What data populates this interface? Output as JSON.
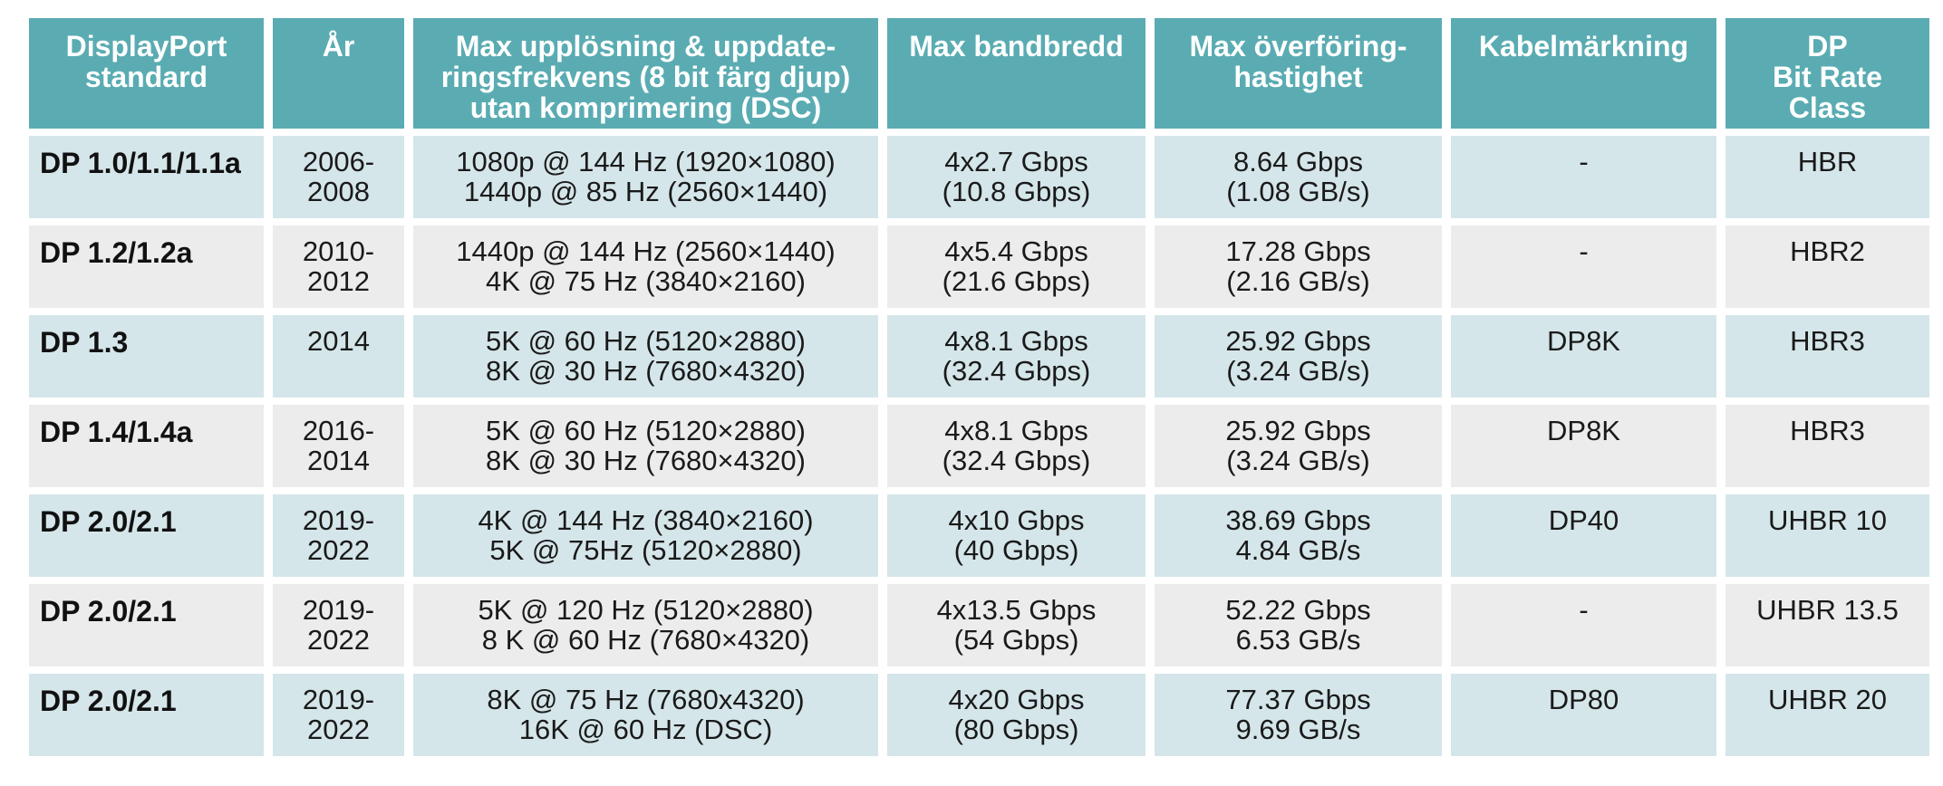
{
  "colors": {
    "header_bg": "#5aacb2",
    "row_blue": "#d5e6ea",
    "row_gray": "#ececec",
    "dash_accent": "#c0392b"
  },
  "headers": [
    [
      "DisplayPort",
      "standard"
    ],
    [
      "År"
    ],
    [
      "Max upplösning & uppdate-",
      "ringsfrekvens (8 bit färg djup)",
      "utan komprimering (DSC)"
    ],
    [
      "Max bandbredd"
    ],
    [
      "Max överföring-",
      "hastighet"
    ],
    [
      "Kabelmärkning"
    ],
    [
      "DP",
      "Bit Rate",
      "Class"
    ]
  ],
  "rows": [
    {
      "standard": "DP 1.0/1.1/1.1a",
      "year": [
        "2006-",
        "2008"
      ],
      "resolution": [
        "1080p @ 144 Hz (1920×1080)",
        "1440p @ 85 Hz (2560×1440)"
      ],
      "bandwidth": [
        "4x2.7 Gbps",
        "(10.8 Gbps)"
      ],
      "transfer": [
        "8.64 Gbps",
        "(1.08 GB/s)"
      ],
      "cable": "-",
      "bitrate": "HBR"
    },
    {
      "standard": "DP 1.2/1.2a",
      "year": [
        "2010-",
        "2012"
      ],
      "resolution": [
        "1440p @ 144 Hz (2560×1440)",
        "4K @ 75 Hz (3840×2160)"
      ],
      "bandwidth": [
        "4x5.4 Gbps",
        "(21.6 Gbps)"
      ],
      "transfer": [
        "17.28 Gbps",
        "(2.16 GB/s)"
      ],
      "cable": "-",
      "bitrate": "HBR2"
    },
    {
      "standard": "DP 1.3",
      "year": [
        "2014",
        ""
      ],
      "resolution": [
        "5K @ 60 Hz (5120×2880)",
        "8K @ 30 Hz (7680×4320)"
      ],
      "bandwidth": [
        "4x8.1 Gbps",
        "(32.4 Gbps)"
      ],
      "transfer": [
        "25.92 Gbps",
        "(3.24 GB/s)"
      ],
      "cable": "DP8K",
      "bitrate": "HBR3"
    },
    {
      "standard": "DP 1.4/1.4a",
      "year": [
        "2016-",
        "2014"
      ],
      "resolution": [
        "5K @ 60 Hz (5120×2880)",
        "8K @ 30 Hz (7680×4320)"
      ],
      "bandwidth": [
        "4x8.1 Gbps",
        "(32.4 Gbps)"
      ],
      "transfer": [
        "25.92 Gbps",
        "(3.24 GB/s)"
      ],
      "cable": "DP8K",
      "bitrate": "HBR3"
    },
    {
      "standard": "DP 2.0/2.1",
      "year": [
        "2019-",
        "2022"
      ],
      "resolution": [
        "4K @ 144 Hz (3840×2160)",
        "5K @ 75Hz (5120×2880)"
      ],
      "bandwidth": [
        "4x10 Gbps",
        "(40 Gbps)"
      ],
      "transfer": [
        "38.69 Gbps",
        "4.84 GB/s"
      ],
      "cable": "DP40",
      "bitrate": "UHBR 10"
    },
    {
      "standard": "DP 2.0/2.1",
      "year": [
        "2019-",
        "2022"
      ],
      "resolution": [
        "5K @ 120 Hz (5120×2880)",
        "8 K @ 60 Hz (7680×4320)"
      ],
      "bandwidth": [
        "4x13.5 Gbps",
        "(54 Gbps)"
      ],
      "transfer": [
        "52.22 Gbps",
        "6.53 GB/s"
      ],
      "cable": "-",
      "bitrate": "UHBR 13.5"
    },
    {
      "standard": "DP 2.0/2.1",
      "year": [
        "2019-",
        "2022"
      ],
      "resolution": [
        "8K @ 75 Hz (7680x4320)",
        "16K @ 60 Hz (DSC)"
      ],
      "bandwidth": [
        "4x20 Gbps",
        "(80 Gbps)"
      ],
      "transfer": [
        "77.37 Gbps",
        "9.69 GB/s"
      ],
      "cable": "DP80",
      "bitrate": "UHBR 20"
    }
  ]
}
